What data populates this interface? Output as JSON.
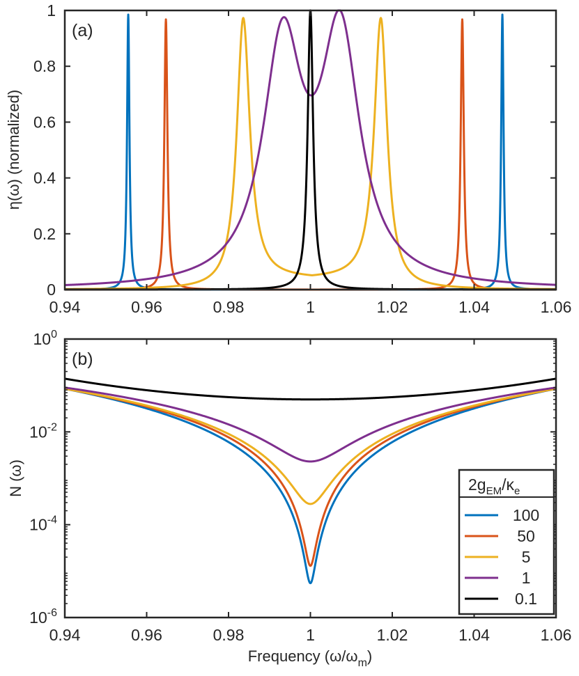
{
  "chart_data": [
    {
      "type": "line",
      "panel_label": "(a)",
      "ylabel": "η(ω) (normalized)",
      "xlim": [
        0.94,
        1.06
      ],
      "ylim": [
        0,
        1
      ],
      "x_ticks": [
        "0.94",
        "0.96",
        "0.98",
        "1",
        "1.02",
        "1.04",
        "1.06"
      ],
      "y_ticks": [
        "0",
        "0.2",
        "0.4",
        "0.6",
        "0.8",
        "1"
      ],
      "series": [
        {
          "name": "100",
          "color": "#0072BD",
          "peaks": [
            0.9555,
            1.0469
          ],
          "peak_height": 0.985,
          "half_width": 0.00035
        },
        {
          "name": "50",
          "color": "#D95319",
          "peaks": [
            0.9647,
            1.0371
          ],
          "peak_height": 0.968,
          "half_width": 0.00045
        },
        {
          "name": "5",
          "color": "#EDB120",
          "peaks": [
            0.9836,
            1.0172
          ],
          "peak_height": 0.973,
          "half_width": 0.0019,
          "dip_value": 0.04
        },
        {
          "name": "1",
          "color": "#7E2F8E",
          "peaks": [
            0.9932,
            1.0073
          ],
          "peak_values": [
            0.973,
            1.0
          ],
          "dip_value": 0.75
        },
        {
          "name": "0.1",
          "color": "#000000",
          "peaks": [
            1.0
          ],
          "peak_height": 1.0,
          "half_width": 0.0008
        }
      ]
    },
    {
      "type": "line",
      "panel_label": "(b)",
      "xlabel": "Frequency (ω/ω",
      "xlabel_sub": "m",
      "xlabel_close": ")",
      "ylabel": "N (ω)",
      "yscale": "log",
      "xlim": [
        0.94,
        1.06
      ],
      "ylim_exp": [
        -6,
        0
      ],
      "x_ticks": [
        "0.94",
        "0.96",
        "0.98",
        "1",
        "1.02",
        "1.04",
        "1.06"
      ],
      "y_ticks": [
        {
          "base": "10",
          "exp": "0"
        },
        {
          "base": "10",
          "exp": "-2"
        },
        {
          "base": "10",
          "exp": "-4"
        },
        {
          "base": "10",
          "exp": "-6"
        }
      ],
      "series": [
        {
          "name": "100",
          "color": "#0072BD",
          "min_value": 5.5e-06,
          "edge_value": 0.085
        },
        {
          "name": "50",
          "color": "#D95319",
          "min_value": 1.3e-05,
          "edge_value": 0.085
        },
        {
          "name": "5",
          "color": "#EDB120",
          "min_value": 0.00028,
          "edge_value": 0.085
        },
        {
          "name": "1",
          "color": "#7E2F8E",
          "min_value": 0.0023,
          "edge_value": 0.09
        },
        {
          "name": "0.1",
          "color": "#000000",
          "min_value": 0.05,
          "edge_value": 0.14
        }
      ]
    }
  ],
  "legend": {
    "title_main": "2g",
    "title_sub": "EM",
    "title_slash": "/κ",
    "title_sub2": "e",
    "entries": [
      "100",
      "50",
      "5",
      "1",
      "0.1"
    ],
    "colors": [
      "#0072BD",
      "#D95319",
      "#EDB120",
      "#7E2F8E",
      "#000000"
    ]
  }
}
